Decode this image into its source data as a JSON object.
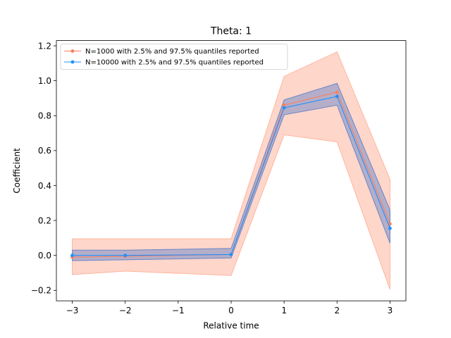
{
  "chart_data": {
    "type": "line",
    "title": "Theta: 1",
    "xlabel": "Relative time",
    "ylabel": "Coefficient",
    "xlim": [
      -3.3,
      3.3
    ],
    "ylim": [
      -0.26,
      1.23
    ],
    "xticks": [
      -3,
      -2,
      -1,
      0,
      1,
      2,
      3
    ],
    "xtick_labels": [
      "−3",
      "−2",
      "−1",
      "0",
      "1",
      "2",
      "3"
    ],
    "yticks": [
      -0.2,
      0.0,
      0.2,
      0.4,
      0.6,
      0.8,
      1.0,
      1.2
    ],
    "ytick_labels": [
      "−0.2",
      "0.0",
      "0.2",
      "0.4",
      "0.6",
      "0.8",
      "1.0",
      "1.2"
    ],
    "grid": false,
    "legend_position": "top-left",
    "x": [
      -3,
      -2,
      0,
      1,
      2,
      3
    ],
    "series": [
      {
        "name": "N=1000 with 2.5% and 97.5% quantiles reported",
        "color": "#fa8060",
        "band_color": "#ffb59e",
        "values": [
          -0.01,
          -0.005,
          0.005,
          0.86,
          0.935,
          0.18
        ],
        "lower": [
          -0.11,
          -0.09,
          -0.115,
          0.69,
          0.65,
          -0.195
        ],
        "upper": [
          0.095,
          0.095,
          0.095,
          1.025,
          1.165,
          0.435
        ]
      },
      {
        "name": "N=10000 with 2.5% and 97.5% quantiles reported",
        "color": "#1e90ff",
        "band_color": "#6a86c8",
        "values": [
          0.0,
          0.0,
          0.005,
          0.845,
          0.91,
          0.155
        ],
        "lower": [
          -0.03,
          -0.025,
          -0.015,
          0.805,
          0.86,
          0.07
        ],
        "upper": [
          0.03,
          0.03,
          0.04,
          0.89,
          0.985,
          0.26
        ]
      }
    ]
  }
}
